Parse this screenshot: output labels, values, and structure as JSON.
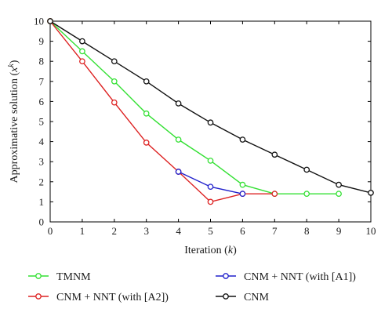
{
  "chart_data": {
    "type": "line",
    "title": "",
    "xlabel": "Iteration (k)",
    "ylabel": "Approximative solution (x^k)",
    "xlim": [
      0,
      10
    ],
    "ylim": [
      0,
      10
    ],
    "xticks": [
      "0",
      "1",
      "2",
      "3",
      "4",
      "5",
      "6",
      "7",
      "8",
      "9",
      "10"
    ],
    "yticks": [
      "0",
      "1",
      "2",
      "3",
      "4",
      "5",
      "6",
      "7",
      "8",
      "9",
      "10"
    ],
    "grid": false,
    "legend_position": "bottom",
    "series": [
      {
        "name": "TMNM",
        "color": "#33e033",
        "marker": "open-circle",
        "x": [
          0,
          1,
          2,
          3,
          4,
          5,
          6,
          7,
          8,
          9
        ],
        "y": [
          10,
          8.5,
          7.0,
          5.4,
          4.1,
          3.05,
          1.85,
          1.4,
          1.4,
          1.4
        ]
      },
      {
        "name": "CNM + NNT (with [A2])",
        "color": "#dd2222",
        "marker": "open-circle",
        "x": [
          0,
          1,
          2,
          3,
          4,
          5,
          6,
          7
        ],
        "y": [
          10,
          8.0,
          5.95,
          3.95,
          2.5,
          1.0,
          1.4,
          1.4
        ]
      },
      {
        "name": "CNM + NNT (with [A1])",
        "color": "#2020cc",
        "marker": "open-circle",
        "x": [
          4,
          5,
          6
        ],
        "y": [
          2.5,
          1.75,
          1.4
        ]
      },
      {
        "name": "CNM",
        "color": "#111111",
        "marker": "open-circle",
        "x": [
          0,
          1,
          2,
          3,
          4,
          5,
          6,
          7,
          8,
          9,
          10
        ],
        "y": [
          10,
          9.0,
          8.0,
          7.0,
          5.9,
          4.95,
          4.1,
          3.35,
          2.6,
          1.85,
          1.45
        ]
      }
    ]
  }
}
